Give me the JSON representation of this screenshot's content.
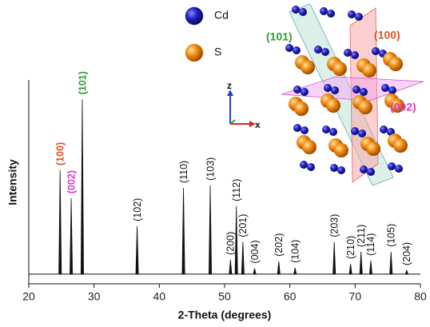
{
  "chart_data": {
    "type": "peaks",
    "x_label": "2-Theta (degrees)",
    "y_label": "Intensity",
    "xlim": [
      20,
      80
    ],
    "xticks": [
      20,
      30,
      40,
      50,
      60,
      70,
      80
    ],
    "ylim": [
      -5,
      100
    ],
    "line_color": "#111111",
    "x": [
      24.8,
      26.5,
      28.2,
      36.6,
      43.7,
      47.8,
      50.9,
      51.8,
      52.8,
      54.6,
      58.3,
      60.8,
      66.8,
      69.3,
      70.9,
      72.4,
      75.5,
      77.9
    ],
    "values": [
      53.5,
      39,
      90,
      24.7,
      44.4,
      45.7,
      7.4,
      35,
      16.5,
      3,
      6.6,
      3.3,
      16.5,
      5.3,
      11.5,
      7,
      11.5,
      2
    ],
    "peak_labels": [
      "(100)",
      "(002)",
      "(101)",
      "(102)",
      "(110)",
      "(103)",
      "(200)",
      "(112)",
      "(201)",
      "(004)",
      "(202)",
      "(104)",
      "(203)",
      "(210)",
      "(211)",
      "(114)",
      "(105)",
      "(204)"
    ],
    "peak_label_colors": [
      "#e0541e",
      "#d63fbf",
      "#2e9e2e",
      "#111111",
      "#111111",
      "#111111",
      "#111111",
      "#111111",
      "#111111",
      "#111111",
      "#111111",
      "#111111",
      "#111111",
      "#111111",
      "#111111",
      "#111111",
      "#111111",
      "#111111"
    ]
  },
  "inset": {
    "legend": [
      {
        "label": "Cd",
        "color": "#1a1aa8"
      },
      {
        "label": "S",
        "color": "#f08a10"
      }
    ],
    "planes": [
      {
        "label": "(101)",
        "color": "#2e9e2e"
      },
      {
        "label": "(100)",
        "color": "#e0541e"
      },
      {
        "label": "(002)",
        "color": "#d63fbf"
      }
    ],
    "axes": [
      "z",
      "x"
    ]
  }
}
